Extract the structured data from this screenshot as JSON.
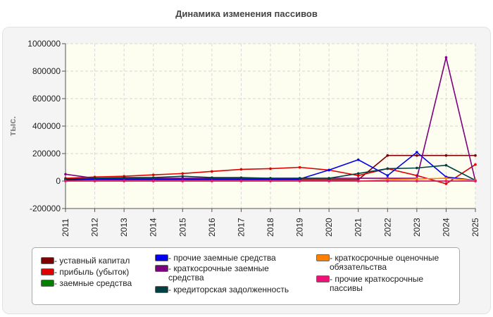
{
  "chart_data": {
    "type": "line",
    "title": "Динамика изменения пассивов",
    "ylabel": "тыс.",
    "xlabel": "",
    "x": [
      "2011",
      "2012",
      "2013",
      "2014",
      "2015",
      "2016",
      "2017",
      "2018",
      "2019",
      "2020",
      "2021",
      "2022",
      "2023",
      "2024",
      "2025"
    ],
    "ylim": [
      -200000,
      1000000
    ],
    "yticks": [
      -200000,
      0,
      200000,
      400000,
      600000,
      800000,
      1000000
    ],
    "ytick_labels": [
      "-200000",
      "0",
      "200000",
      "400000",
      "600000",
      "800000",
      "1000000"
    ],
    "grid": true,
    "legend_position": "bottom",
    "series": [
      {
        "name": "устваный капитал",
        "label_display": "- уставный капитал",
        "color": "#7f0000",
        "values": [
          10000,
          10000,
          10000,
          10000,
          10000,
          10000,
          10000,
          10000,
          10000,
          10000,
          10000,
          186000,
          186000,
          186000,
          186000
        ]
      },
      {
        "name": "прибыль (убыток)",
        "label_display": "- прибыль (убыток)",
        "color": "#e00000",
        "values": [
          20000,
          30000,
          35000,
          45000,
          55000,
          70000,
          85000,
          90000,
          100000,
          80000,
          40000,
          90000,
          40000,
          -20000,
          120000
        ]
      },
      {
        "name": "заемные средства",
        "label_display": "- заемные средства",
        "color": "#007f00",
        "values": [
          0,
          0,
          0,
          0,
          0,
          0,
          0,
          0,
          0,
          0,
          0,
          0,
          0,
          0,
          0
        ]
      },
      {
        "name": "прочие заемные средства",
        "label_display": "- прочие заемные средства",
        "color": "#0000ee",
        "values": [
          5000,
          15000,
          15000,
          15000,
          15000,
          15000,
          15000,
          15000,
          15000,
          80000,
          155000,
          40000,
          210000,
          30000,
          5000
        ]
      },
      {
        "name": "краткосрочные заемные средства",
        "label_display": "- краткосрочные заемные средства",
        "color": "#7f007f",
        "values": [
          50000,
          20000,
          20000,
          20000,
          20000,
          20000,
          20000,
          20000,
          20000,
          20000,
          20000,
          20000,
          20000,
          900000,
          0
        ]
      },
      {
        "name": "кредиторская задолженность",
        "label_display": "- кредиторская задолженность",
        "color": "#004040",
        "values": [
          15000,
          20000,
          25000,
          25000,
          35000,
          25000,
          25000,
          20000,
          20000,
          20000,
          55000,
          90000,
          95000,
          115000,
          5000
        ]
      },
      {
        "name": "краткосрочные оценочные обязательства",
        "label_display": "- краткосрочные оценочные обязательства",
        "color": "#ff8000",
        "values": [
          0,
          0,
          0,
          0,
          0,
          0,
          0,
          0,
          0,
          0,
          0,
          10000,
          15000,
          20000,
          5000
        ]
      },
      {
        "name": "прочие краткосрочные пассивы",
        "label_display": "- прочие краткосрочные пассивы",
        "color": "#ee1177",
        "values": [
          0,
          0,
          0,
          0,
          0,
          0,
          0,
          0,
          0,
          0,
          0,
          0,
          0,
          0,
          0
        ]
      }
    ]
  }
}
